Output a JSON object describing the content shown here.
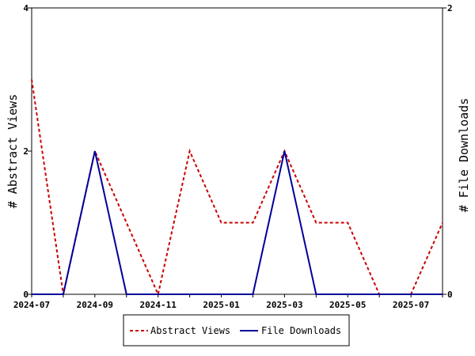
{
  "chart_data": {
    "type": "line",
    "x": [
      "2024-07",
      "2024-08",
      "2024-09",
      "2024-10",
      "2024-11",
      "2024-12",
      "2025-01",
      "2025-02",
      "2025-03",
      "2025-04",
      "2025-05",
      "2025-06",
      "2025-07",
      "2025-08"
    ],
    "x_tick_labels": [
      "2024-07",
      "2024-09",
      "2024-11",
      "2025-01",
      "2025-03",
      "2025-05",
      "2025-07"
    ],
    "left_axis": {
      "label": "# Abstract Views",
      "range": [
        0,
        4
      ],
      "ticks": [
        "0",
        "2",
        "4"
      ]
    },
    "right_axis": {
      "label": "# File Downloads",
      "range": [
        0,
        2
      ],
      "ticks": [
        "0",
        "2"
      ]
    },
    "series": [
      {
        "name": "Abstract Views",
        "axis": "left",
        "color": "#cc0000",
        "style": "dashed",
        "values": [
          3,
          0,
          2,
          1,
          0,
          2,
          1,
          1,
          2,
          1,
          1,
          0,
          0,
          1
        ]
      },
      {
        "name": "File Downloads",
        "axis": "right",
        "color": "#000099",
        "style": "solid",
        "values": [
          0,
          0,
          1,
          0,
          0,
          0,
          0,
          0,
          1,
          0,
          0,
          0,
          0,
          0
        ]
      }
    ],
    "grid": false,
    "legend_position": "bottom"
  }
}
